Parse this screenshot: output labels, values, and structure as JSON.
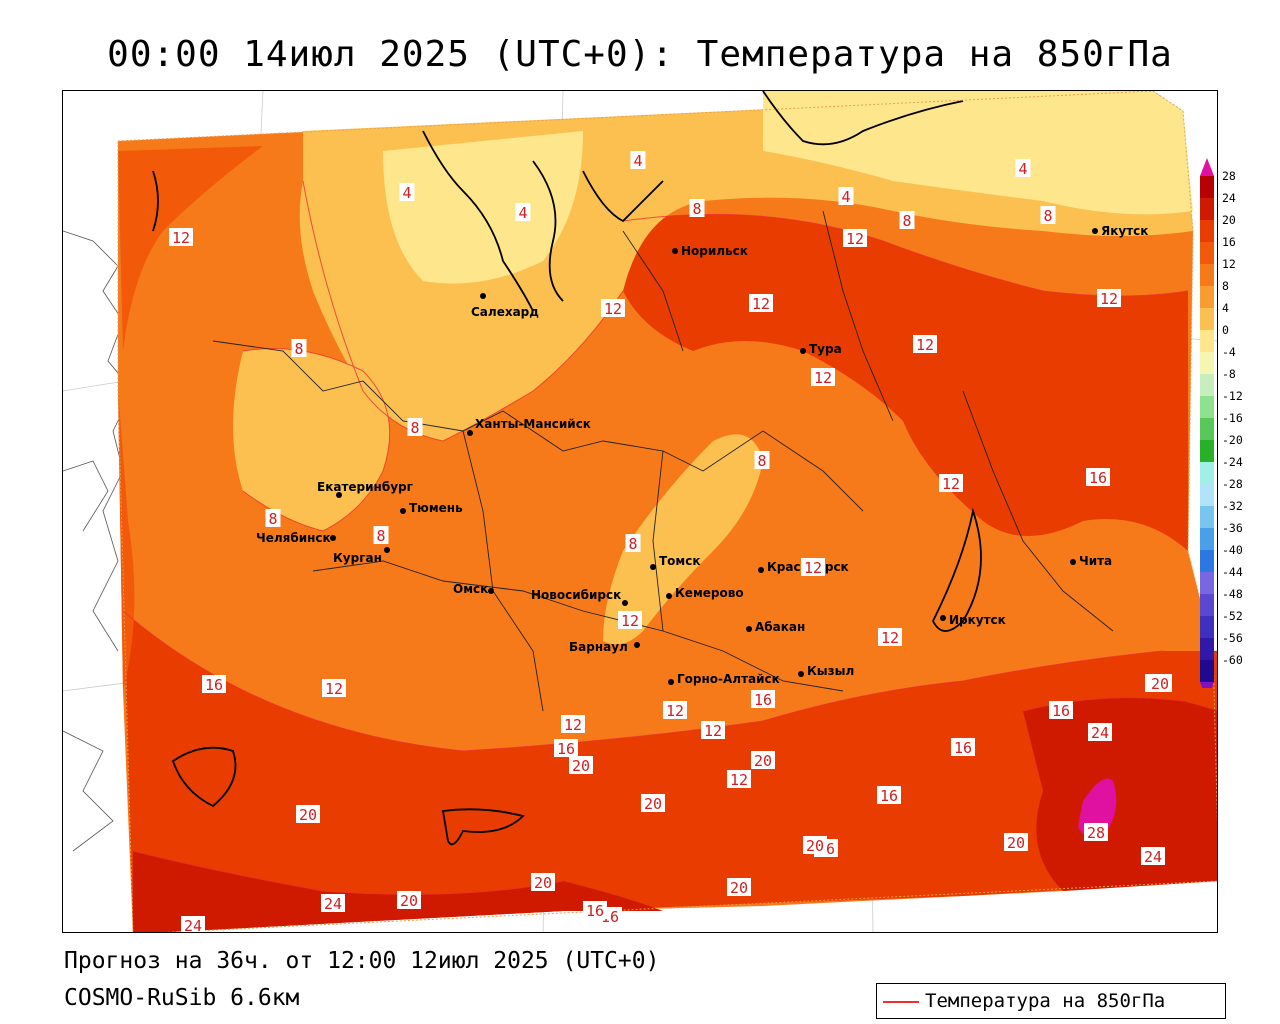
{
  "title": "00:00 14июл 2025 (UTC+0): Температура на 850гПа",
  "forecast_line": "Прогноз на 36ч. от 12:00 12июл 2025 (UTC+0)",
  "model_line": "COSMO-RuSib 6.6км",
  "legend_label": "Температура на 850гПа",
  "colors": {
    "contour_line": "#f03030",
    "frame": "#000000"
  },
  "colorbar": {
    "labels": [
      "28",
      "24",
      "20",
      "16",
      "12",
      "8",
      "4",
      "0",
      "-4",
      "-8",
      "-12",
      "-16",
      "-20",
      "-24",
      "-28",
      "-32",
      "-36",
      "-40",
      "-44",
      "-48",
      "-52",
      "-56",
      "-60"
    ],
    "colors": [
      "#b80000",
      "#d01a00",
      "#e83c00",
      "#f25a0a",
      "#f67a1a",
      "#fa9c30",
      "#fbc050",
      "#fde68c",
      "#f5f7b0",
      "#c8eec0",
      "#8fe08f",
      "#58c858",
      "#28b028",
      "#a0f0e8",
      "#b0e4f8",
      "#78c6f0",
      "#4aa0e8",
      "#2c78e0",
      "#7868e0",
      "#5a48d0",
      "#4030c0",
      "#3018a8",
      "#200890"
    ]
  },
  "cities": [
    {
      "name": "Норильск"
    },
    {
      "name": "Якутск"
    },
    {
      "name": "Салехард"
    },
    {
      "name": "Тура"
    },
    {
      "name": "Ханты-Мансийск"
    },
    {
      "name": "Екатеринбург"
    },
    {
      "name": "Тюмень"
    },
    {
      "name": "Челябинск"
    },
    {
      "name": "Курган"
    },
    {
      "name": "Омск"
    },
    {
      "name": "Томск"
    },
    {
      "name": "Новосибирск"
    },
    {
      "name": "Кемерово"
    },
    {
      "name": "Красноярск"
    },
    {
      "name": "Иркутск"
    },
    {
      "name": "Чита"
    },
    {
      "name": "Абакан"
    },
    {
      "name": "Барнаул"
    },
    {
      "name": "Горно-Алтайск"
    },
    {
      "name": "Кызыл"
    }
  ],
  "contour_labels": [
    {
      "v": "4"
    },
    {
      "v": "4"
    },
    {
      "v": "4"
    },
    {
      "v": "4"
    },
    {
      "v": "4"
    },
    {
      "v": "8"
    },
    {
      "v": "8"
    },
    {
      "v": "8"
    },
    {
      "v": "8"
    },
    {
      "v": "8"
    },
    {
      "v": "8"
    },
    {
      "v": "8"
    },
    {
      "v": "8"
    },
    {
      "v": "8"
    },
    {
      "v": "12"
    },
    {
      "v": "12"
    },
    {
      "v": "12"
    },
    {
      "v": "12"
    },
    {
      "v": "12"
    },
    {
      "v": "12"
    },
    {
      "v": "12"
    },
    {
      "v": "12"
    },
    {
      "v": "12"
    },
    {
      "v": "12"
    },
    {
      "v": "12"
    },
    {
      "v": "12"
    },
    {
      "v": "12"
    },
    {
      "v": "12"
    },
    {
      "v": "12"
    },
    {
      "v": "12"
    },
    {
      "v": "16"
    },
    {
      "v": "16"
    },
    {
      "v": "16"
    },
    {
      "v": "16"
    },
    {
      "v": "16"
    },
    {
      "v": "16"
    },
    {
      "v": "16"
    },
    {
      "v": "16"
    },
    {
      "v": "16"
    },
    {
      "v": "16"
    },
    {
      "v": "16"
    },
    {
      "v": "20"
    },
    {
      "v": "20"
    },
    {
      "v": "20"
    },
    {
      "v": "20"
    },
    {
      "v": "20"
    },
    {
      "v": "20"
    },
    {
      "v": "20"
    },
    {
      "v": "20"
    },
    {
      "v": "20"
    },
    {
      "v": "20"
    },
    {
      "v": "24"
    },
    {
      "v": "24"
    },
    {
      "v": "24"
    },
    {
      "v": "24"
    },
    {
      "v": "28"
    }
  ]
}
